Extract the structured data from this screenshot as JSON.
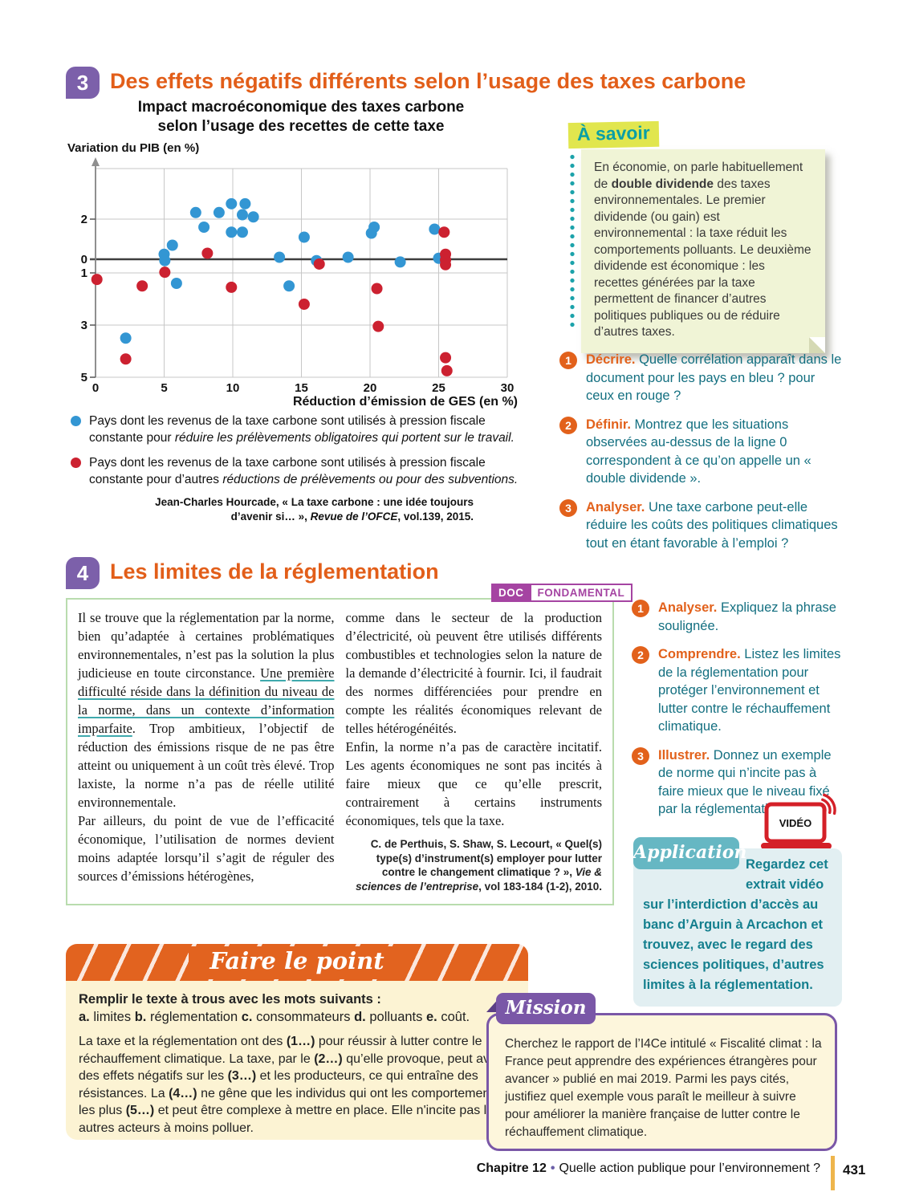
{
  "colors": {
    "heading_orange": "#e25e19",
    "badge_purple": "#7c60aa",
    "question_teal": "#136f80",
    "highlight_yellow_green": "#e1e64e",
    "note_background": "#f0f4d6",
    "doc_border_green": "#b9dcae",
    "doc_badge_magenta": "#a544a2",
    "application_teal": "#66b7c3",
    "video_red": "#d42028",
    "banner_orange": "#e2631f",
    "pale_yellow": "#fcf3d3",
    "mission_purple": "#7a57a7",
    "footer_bar_yellow": "#eeb54c"
  },
  "sec3": {
    "num": "3",
    "title": "Des effets négatifs différents selon l’usage des taxes carbone"
  },
  "sec4": {
    "num": "4",
    "title": "Les limites de la réglementation"
  },
  "chart_data": {
    "type": "scatter",
    "title_line1": "Impact macroéconomique des taxes carbone",
    "title_line2": "selon l’usage des recettes de cette taxe",
    "ylabel": "Variation du PIB (en %)",
    "xlabel": "Réduction d’émission de GES (en %)",
    "xlim": [
      0,
      30
    ],
    "ylim": [
      -5,
      4.5
    ],
    "grid": true,
    "zero_line": true,
    "xticks": [
      0,
      5,
      10,
      15,
      20,
      25,
      30
    ],
    "yticks": [
      {
        "label": "+ 2",
        "v": 2
      },
      {
        "label": "0",
        "v": 0
      },
      {
        "label": "− 1",
        "v": -1
      },
      {
        "label": "− 3",
        "v": -3
      },
      {
        "label": "− 5",
        "v": -5
      }
    ],
    "series": [
      {
        "name": "Pays dont les revenus de la taxe carbone sont utilisés à pression fiscale constante pour réduire les prélèvements obligatoires qui portent sur le travail.",
        "color": "#3396d3",
        "points": [
          [
            2.2,
            -3.5
          ],
          [
            5.0,
            0.25
          ],
          [
            5.05,
            -0.1
          ],
          [
            5.6,
            0.7
          ],
          [
            5.9,
            -1.4
          ],
          [
            7.3,
            2.3
          ],
          [
            7.9,
            1.6
          ],
          [
            9.0,
            2.3
          ],
          [
            9.9,
            2.7
          ],
          [
            9.9,
            1.35
          ],
          [
            10.7,
            2.2
          ],
          [
            10.9,
            2.7
          ],
          [
            10.7,
            1.35
          ],
          [
            11.5,
            2.1
          ],
          [
            13.4,
            0.1
          ],
          [
            14.1,
            -1.5
          ],
          [
            15.2,
            1.1
          ],
          [
            16.1,
            -0.1
          ],
          [
            18.4,
            0.1
          ],
          [
            20.1,
            1.3
          ],
          [
            20.3,
            1.6
          ],
          [
            22.2,
            -0.2
          ],
          [
            24.7,
            1.5
          ],
          [
            25.0,
            0.05
          ]
        ]
      },
      {
        "name": "Pays dont les revenus de la taxe carbone sont utilisés à pression fiscale constante pour d’autres réductions de prélèvements ou pour des subventions.",
        "color": "#cc2130",
        "points": [
          [
            0.1,
            -1.25
          ],
          [
            2.2,
            -4.3
          ],
          [
            3.4,
            -1.5
          ],
          [
            5.05,
            -0.95
          ],
          [
            8.15,
            0.3
          ],
          [
            9.9,
            -1.55
          ],
          [
            15.2,
            -2.2
          ],
          [
            16.3,
            -0.35
          ],
          [
            20.5,
            -1.6
          ],
          [
            20.6,
            -3.05
          ],
          [
            25.4,
            1.35
          ],
          [
            25.5,
            0.25
          ],
          [
            25.5,
            -0.05
          ],
          [
            25.5,
            -0.4
          ],
          [
            25.5,
            -4.25
          ],
          [
            25.6,
            -4.75
          ]
        ]
      }
    ]
  },
  "legend": {
    "items": [
      {
        "pre": "Pays dont les revenus de la taxe carbone sont utilisés à pression fiscale constante pour ",
        "italic": "réduire les prélèvements obligatoires qui portent sur le travail."
      },
      {
        "pre": "Pays dont les revenus de la taxe carbone sont utilisés à pression fiscale constante pour d’autres ",
        "italic": "réductions de prélèvements ou pour des subventions."
      }
    ],
    "source_pre": "Jean-Charles Hourcade, « La taxe carbone : une idée toujours d’avenir si… », ",
    "source_italic": "Revue de l’OFCE",
    "source_post": ", vol.139, 2015."
  },
  "asavoir": {
    "title": "À savoir",
    "p1": "En économie, on parle habituellement de ",
    "bold": "double dividende",
    "p2": " des taxes environnementales. Le premier dividende (ou gain) est environnemental : la taxe réduit les comportements polluants. Le deuxième dividende est économique : les recettes générées par la taxe permettent de financer d’autres politiques publiques ou de réduire d’autres taxes."
  },
  "questions3": [
    {
      "num": "1",
      "kw": "Décrire.",
      "text": "Quelle corrélation apparaît dans le document pour les pays en bleu ? pour ceux en rouge ?"
    },
    {
      "num": "2",
      "kw": "Définir.",
      "text": "Montrez que les situations observées au-dessus de la ligne 0 correspondent à ce qu’on appelle un « double dividende »."
    },
    {
      "num": "3",
      "kw": "Analyser.",
      "text": "Une taxe carbone peut-elle réduire les coûts des politiques climatiques tout en étant favorable à l’emploi ?"
    }
  ],
  "questions4": [
    {
      "num": "1",
      "kw": "Analyser.",
      "text": "Expliquez la phrase soulignée."
    },
    {
      "num": "2",
      "kw": "Comprendre.",
      "text": "Listez les limites de la réglementation pour protéger l’environnement et lutter contre le réchauffement climatique."
    },
    {
      "num": "3",
      "kw": "Illustrer.",
      "text": "Donnez un exemple de norme qui n’incite pas à faire mieux que le niveau fixé par la réglementation."
    }
  ],
  "doc4": {
    "badge_doc": "DOC",
    "badge_type": "FONDAMENTAL",
    "col_left": {
      "p1_start": "Il se trouve que la réglementation par la norme, bien qu’adaptée à certaines problématiques environnementales, n’est pas la solution la plus judicieuse en toute circonstance. ",
      "p1_underline": "Une première difficulté réside dans la définition du niveau de la norme, dans un contexte d’information imparfaite",
      "p1_end": ". Trop ambitieux, l’objectif de réduction des émissions risque de ne pas être atteint ou uniquement à un coût très élevé. Trop laxiste, la norme n’a pas de réelle utilité environnementale.",
      "p2": "Par ailleurs, du point de vue de l’efficacité économique, l’utilisation de normes devient moins adaptée lorsqu’il s’agit de réguler des sources d’émissions hétérogènes,"
    },
    "col_right": {
      "p2_cont": "comme dans le secteur de la production d’électricité, où peuvent être utilisés différents combustibles et technologies selon la nature de la demande d’électricité à fournir. Ici, il faudrait des normes différenciées pour prendre en compte les réalités économiques relevant de telles hétérogénéités.",
      "p3": "Enfin, la norme n’a pas de caractère incitatif. Les agents économiques ne sont pas incités à faire mieux que ce qu’elle prescrit, contrairement à certains instruments économiques, tels que la taxe.",
      "source_pre": "C. de Perthuis, S. Shaw, S. Lecourt, « Quel(s) type(s) d’instrument(s) employer pour lutter contre le changement climatique ? », ",
      "source_italic": "Vie & sciences de l’entreprise",
      "source_post": ", vol 183-184 (1-2), 2010."
    }
  },
  "video": {
    "label": "VIDÉO"
  },
  "application": {
    "label": "Application",
    "text": "Regardez cet extrait vidéo sur l’interdiction d’accès au banc d’Arguin à Arcachon et trouvez, avec le regard des sciences politiques, d’autres limites à la réglementation."
  },
  "ftp": {
    "title": "Faire le point",
    "instruction": "Remplir le texte à trous avec les mots suivants :",
    "words": [
      {
        "l": "a.",
        "w": "limites"
      },
      {
        "l": "b.",
        "w": "réglementation"
      },
      {
        "l": "c.",
        "w": "consommateurs"
      },
      {
        "l": "d.",
        "w": "polluants"
      },
      {
        "l": "e.",
        "w": "coût."
      }
    ],
    "para": {
      "s0": "La taxe et la réglementation ont des ",
      "m1": "(1…)",
      "s1": " pour réussir à lutter contre le réchauffement climatique. La taxe, par le ",
      "m2": "(2…)",
      "s2": " qu’elle provoque, peut avoir des effets négatifs sur les ",
      "m3": "(3…)",
      "s3": " et les producteurs, ce qui entraîne des résistances. La ",
      "m4": "(4…)",
      "s4": " ne gêne que les individus qui ont les comportements les plus ",
      "m5": "(5…)",
      "s5": " et peut être complexe à mettre en place. Elle n'incite pas les autres acteurs à moins polluer."
    }
  },
  "mission": {
    "label": "Mission",
    "text": "Cherchez le rapport de l’I4Ce intitulé « Fiscalité climat : la France peut apprendre des expériences étrangères pour avancer » publié en mai 2019. Parmi les pays cités, justifiez quel exemple vous paraît le meilleur à suivre pour améliorer la manière française de lutter contre le réchauffement climatique."
  },
  "footer": {
    "chapter": "Chapitre 12",
    "sep": "•",
    "title": "Quelle action publique pour l’environnement ?",
    "page": "431"
  }
}
